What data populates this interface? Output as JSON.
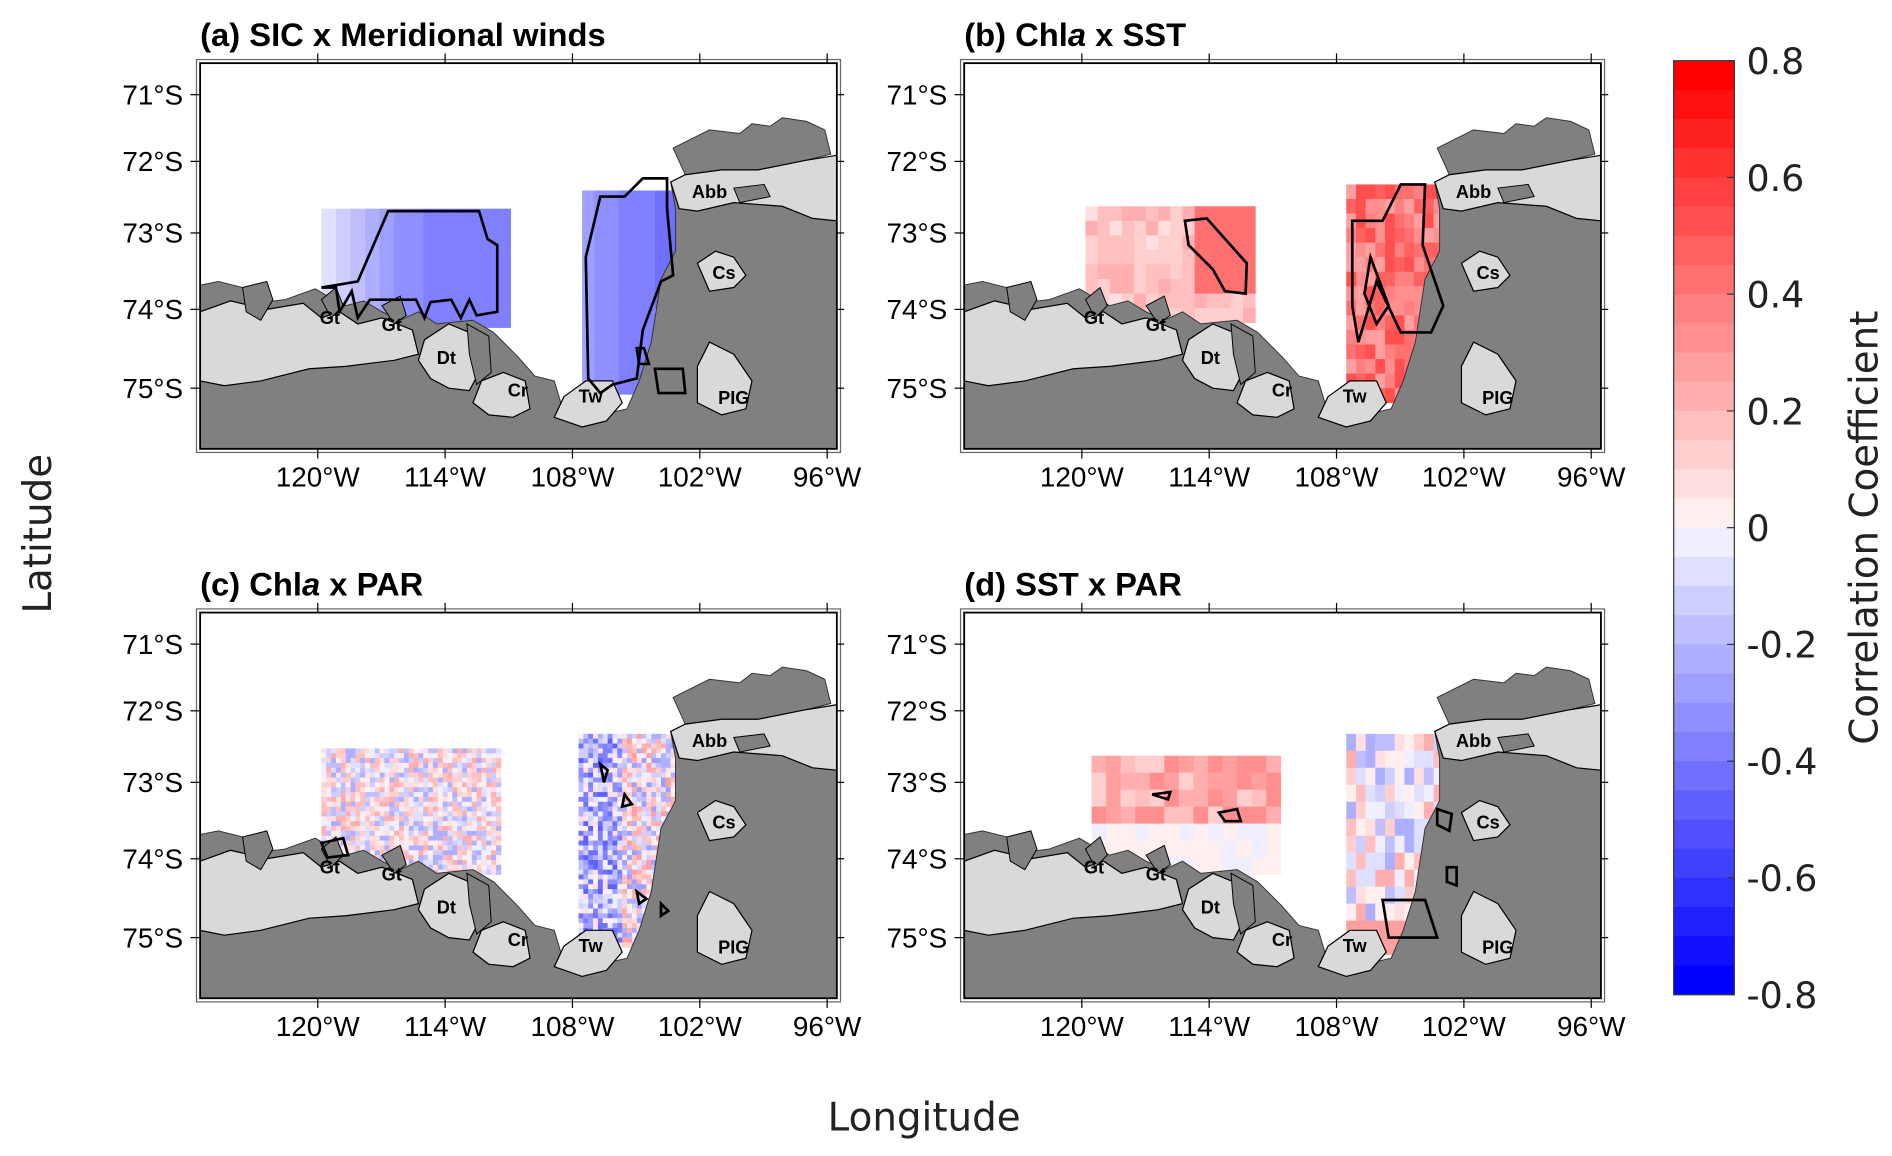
{
  "figure": {
    "ylabel": "Latitude",
    "xlabel": "Longitude"
  },
  "axes": {
    "lat_ticks": [
      "71°S",
      "72°S",
      "73°S",
      "74°S",
      "75°S"
    ],
    "lon_ticks": [
      "120°W",
      "114°W",
      "108°W",
      "102°W",
      "96°W"
    ]
  },
  "panels": [
    {
      "label": "(a)",
      "title_pre": "SIC x Meridional winds",
      "title_ital": "",
      "title_post": ""
    },
    {
      "label": "(b)",
      "title_pre": "Chl",
      "title_ital": "a",
      "title_post": " x SST"
    },
    {
      "label": "(c)",
      "title_pre": "Chl",
      "title_ital": "a",
      "title_post": " x PAR"
    },
    {
      "label": "(d)",
      "title_pre": "SST x PAR",
      "title_ital": "",
      "title_post": ""
    }
  ],
  "places": [
    "Gt",
    "Gt",
    "Dt",
    "Cr",
    "Tw",
    "PIG",
    "Cs",
    "Abb"
  ],
  "colorbar": {
    "label": "Correlation Coefficient",
    "min": -0.8,
    "max": 0.8,
    "steps": 32,
    "ticks": [
      "0.8",
      "0.6",
      "0.4",
      "0.2",
      "0",
      "-0.2",
      "-0.4",
      "-0.6",
      "-0.8"
    ],
    "colors": {
      "negative": "#0000ff",
      "zero": "#ffffff",
      "positive": "#ff0000"
    }
  },
  "map_colors": {
    "land": "#808080",
    "ice_shelf": "#d9d9d9",
    "ocean": "#ffffff",
    "contour": "#000000"
  }
}
